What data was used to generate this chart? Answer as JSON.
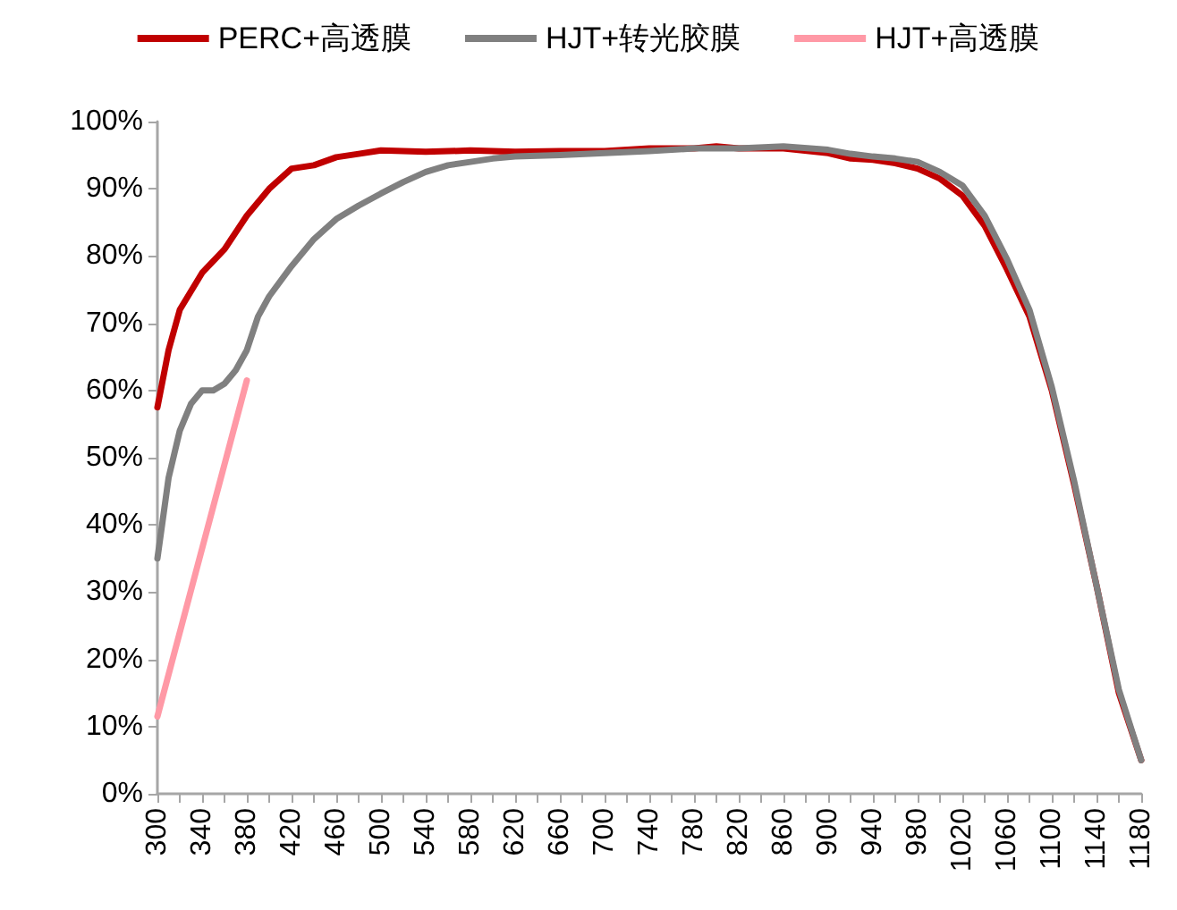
{
  "chart_data": {
    "type": "line",
    "legend": "top",
    "grid": false,
    "marker": "none",
    "line_style": "solid",
    "xlim": [
      300,
      1180
    ],
    "xticks": [
      300,
      {
        "value": 320,
        "label": null
      },
      340,
      {
        "value": 360,
        "label": null
      },
      380,
      {
        "value": 400,
        "label": null
      },
      420,
      {
        "value": 440,
        "label": null
      },
      460,
      {
        "value": 480,
        "label": null
      },
      500,
      {
        "value": 520,
        "label": null
      },
      540,
      {
        "value": 560,
        "label": null
      },
      580,
      {
        "value": 600,
        "label": null
      },
      620,
      {
        "value": 640,
        "label": null
      },
      660,
      {
        "value": 680,
        "label": null
      },
      700,
      {
        "value": 720,
        "label": null
      },
      740,
      {
        "value": 760,
        "label": null
      },
      780,
      {
        "value": 800,
        "label": null
      },
      820,
      {
        "value": 840,
        "label": null
      },
      860,
      {
        "value": 880,
        "label": null
      },
      900,
      {
        "value": 920,
        "label": null
      },
      940,
      {
        "value": 960,
        "label": null
      },
      980,
      {
        "value": 1000,
        "label": null
      },
      1020,
      {
        "value": 1040,
        "label": null
      },
      1060,
      {
        "value": 1080,
        "label": null
      },
      1100,
      {
        "value": 1120,
        "label": null
      },
      1140,
      {
        "value": 1160,
        "label": null
      },
      1180
    ],
    "ylim": [
      0,
      100
    ],
    "yticks": [
      {
        "value": 0,
        "label": "0%"
      },
      {
        "value": 10,
        "label": "10%"
      },
      {
        "value": 20,
        "label": "20%"
      },
      {
        "value": 30,
        "label": "30%"
      },
      {
        "value": 40,
        "label": "40%"
      },
      {
        "value": 50,
        "label": "50%"
      },
      {
        "value": 60,
        "label": "60%"
      },
      {
        "value": 70,
        "label": "70%"
      },
      {
        "value": 80,
        "label": "80%"
      },
      {
        "value": 90,
        "label": "90%"
      },
      {
        "value": 100,
        "label": "100%"
      }
    ],
    "series": [
      {
        "name": "PERC+高透膜",
        "color": "#c00000",
        "x": [
          300,
          310,
          320,
          340,
          360,
          380,
          400,
          420,
          440,
          460,
          480,
          500,
          540,
          580,
          620,
          660,
          700,
          740,
          780,
          800,
          820,
          860,
          900,
          920,
          940,
          960,
          980,
          1000,
          1020,
          1040,
          1060,
          1080,
          1100,
          1120,
          1140,
          1160,
          1180
        ],
        "values": [
          57.5,
          66,
          72,
          77.5,
          81,
          86,
          90,
          93,
          93.5,
          94.7,
          95.2,
          95.7,
          95.5,
          95.7,
          95.5,
          95.6,
          95.6,
          96,
          96,
          96.3,
          96,
          96,
          95.3,
          94.5,
          94.3,
          93.8,
          93,
          91.5,
          89,
          84.5,
          78,
          71,
          60,
          46,
          31,
          15,
          5
        ]
      },
      {
        "name": "HJT+转光胶膜",
        "color": "#808080",
        "x": [
          300,
          310,
          320,
          330,
          340,
          350,
          360,
          370,
          380,
          390,
          400,
          420,
          440,
          460,
          480,
          500,
          520,
          540,
          560,
          580,
          600,
          620,
          660,
          700,
          740,
          780,
          820,
          860,
          900,
          920,
          940,
          960,
          980,
          1000,
          1020,
          1040,
          1060,
          1080,
          1100,
          1120,
          1140,
          1160,
          1180
        ],
        "values": [
          35,
          47,
          54,
          58,
          60,
          60,
          61,
          63,
          66,
          71,
          74,
          78.5,
          82.5,
          85.5,
          87.5,
          89.3,
          91,
          92.5,
          93.5,
          94,
          94.5,
          94.8,
          95,
          95.3,
          95.6,
          96,
          96,
          96.3,
          95.8,
          95.2,
          94.8,
          94.5,
          94,
          92.5,
          90.5,
          86,
          79.5,
          72,
          60.5,
          46.5,
          31,
          15.5,
          5
        ]
      },
      {
        "name": "HJT+高透膜",
        "color": "#ff99a6",
        "x": [
          300,
          380
        ],
        "values": [
          11.5,
          61.5
        ]
      }
    ]
  }
}
